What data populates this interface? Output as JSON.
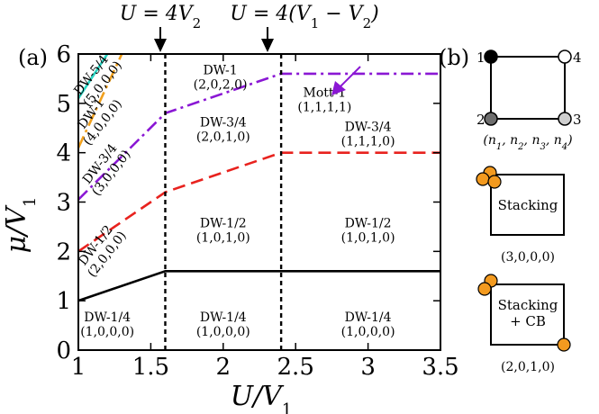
{
  "panel_a": {
    "label": "(a)",
    "xlabel": "U/V",
    "xlabel_sub": "1",
    "ylabel": "μ/V",
    "ylabel_sub": "1",
    "xlim": [
      1,
      3.5
    ],
    "ylim": [
      0,
      6
    ],
    "x_ticks": [
      "1",
      "1.5",
      "2",
      "2.5",
      "3",
      "3.5"
    ],
    "y_ticks": [
      "0",
      "1",
      "2",
      "3",
      "4",
      "5",
      "6"
    ],
    "annotation_left": "U = 4V",
    "annotation_left_sub": "2",
    "annotation_right": "U = 4(V",
    "annotation_right_sub1": "1",
    "annotation_right_mid": " − V",
    "annotation_right_sub2": "2",
    "annotation_right_end": ")"
  },
  "chart_data": {
    "type": "line",
    "xlim": [
      1,
      3.5
    ],
    "ylim": [
      0,
      6
    ],
    "vertical_dashed_lines": [
      1.6,
      2.4
    ],
    "series": [
      {
        "color": "#000000",
        "style": "solid",
        "x": [
          1,
          1.6,
          3.5
        ],
        "y": [
          1.0,
          1.6,
          1.6
        ]
      },
      {
        "color": "#e8221e",
        "style": "dashed",
        "x": [
          1,
          1.6,
          2.4,
          3.5
        ],
        "y": [
          2.0,
          3.2,
          4.0,
          4.0
        ]
      },
      {
        "color": "#8a17d4",
        "style": "dashdot",
        "x": [
          1,
          1.6,
          2.4,
          3.5
        ],
        "y": [
          3.05,
          4.8,
          5.6,
          5.6
        ]
      },
      {
        "color": "#f0a01e",
        "style": "dashdot",
        "x": [
          1,
          1.3
        ],
        "y": [
          4.1,
          6.0
        ]
      },
      {
        "color": "#2ad6c4",
        "style": "solid",
        "x": [
          1,
          1.2
        ],
        "y": [
          5.1,
          6.0
        ]
      }
    ],
    "regions": [
      {
        "name": "DW-1/4",
        "occ": "(1,0,0,0)",
        "cx": 1.2,
        "cy": 0.55
      },
      {
        "name": "DW-1/4",
        "occ": "(1,0,0,0)",
        "cx": 2.0,
        "cy": 0.55
      },
      {
        "name": "DW-1/4",
        "occ": "(1,0,0,0)",
        "cx": 3.0,
        "cy": 0.55
      },
      {
        "name": "DW-1/2",
        "occ": "(1,0,1,0)",
        "cx": 2.0,
        "cy": 2.45
      },
      {
        "name": "DW-1/2",
        "occ": "(1,0,1,0)",
        "cx": 3.0,
        "cy": 2.45
      },
      {
        "name": "DW-3/4",
        "occ": "(2,0,1,0)",
        "cx": 2.0,
        "cy": 4.5
      },
      {
        "name": "DW-3/4",
        "occ": "(1,1,1,0)",
        "cx": 3.0,
        "cy": 4.4
      },
      {
        "name": "DW-1",
        "occ": "(2,0,2,0)",
        "cx": 1.98,
        "cy": 5.55
      },
      {
        "name": "Mott-1",
        "occ": "(1,1,1,1)",
        "cx": 2.7,
        "cy": 5.1
      }
    ],
    "rotated_regions": [
      {
        "name": "DW-1/2",
        "occ": "(2,0,0,0)",
        "cx": 1.15,
        "cy": 2.05
      },
      {
        "name": "DW-3/4",
        "occ": "(3,0,0,0)",
        "cx": 1.18,
        "cy": 3.7
      },
      {
        "name": "DW-1",
        "occ": "(4,0,0,0)",
        "cx": 1.12,
        "cy": 4.72
      },
      {
        "name": "DW-5/4",
        "occ": "(5,0,0,0)",
        "cx": 1.12,
        "cy": 5.5
      }
    ]
  },
  "panel_b": {
    "label": "(b)",
    "site_1": "1",
    "site_2": "2",
    "site_3": "3",
    "site_4": "4",
    "occ_label_open": "(n",
    "occ_label_s1": "1",
    "occ_label_s2": "2",
    "occ_label_s3": "3",
    "occ_label_s4": "4",
    "occ_label_sep": ", n",
    "occ_label_close": ")",
    "stacking_label": "Stacking",
    "stacking_occ": "(3,0,0,0)",
    "stacking_cb_line1": "Stacking",
    "stacking_cb_line2": "+ CB",
    "stacking_cb_occ": "(2,0,1,0)",
    "colors": {
      "site1": "#000000",
      "site2": "#6e6e6e",
      "site3": "#cfcfcf",
      "site4": "#ffffff",
      "particle": "#f39a1f"
    }
  }
}
